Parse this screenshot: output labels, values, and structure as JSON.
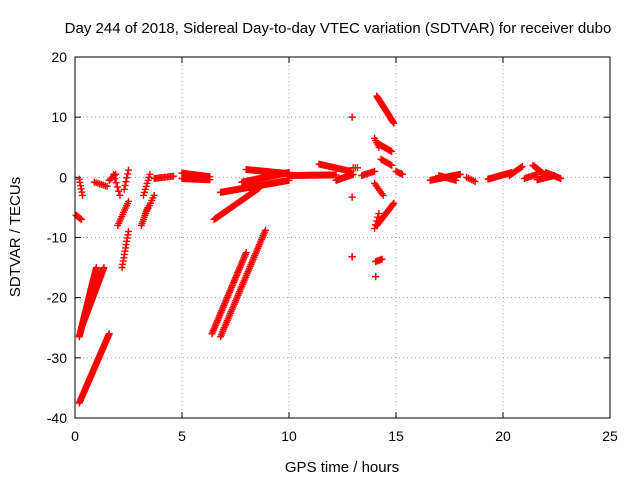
{
  "chart_data": {
    "type": "scatter",
    "title": "Day 244 of 2018, Sidereal Day-to-day VTEC variation (SDTVAR) for receiver dubo",
    "xlabel": "GPS time / hours",
    "ylabel": "SDTVAR / TECUs",
    "xlim": [
      0,
      25
    ],
    "ylim": [
      -40,
      20
    ],
    "xticks": [
      "0",
      "5",
      "10",
      "15",
      "20",
      "25"
    ],
    "yticks": [
      "20",
      "10",
      "0",
      "-10",
      "-20",
      "-30",
      "-40"
    ],
    "grid": true,
    "marker": "+",
    "color": "#ff0000",
    "segments": [
      {
        "x": [
          0.05,
          0.3
        ],
        "y": [
          -6.3,
          -7.0
        ],
        "n": 8
      },
      {
        "x": [
          0.2,
          0.35
        ],
        "y": [
          -0.3,
          -3.0
        ],
        "n": 6
      },
      {
        "x": [
          0.2,
          1.0
        ],
        "y": [
          -26.5,
          -15.0
        ],
        "n": 60
      },
      {
        "x": [
          0.3,
          1.35
        ],
        "y": [
          -25.0,
          -15.0
        ],
        "n": 60
      },
      {
        "x": [
          0.2,
          1.6
        ],
        "y": [
          -37.5,
          -26.0
        ],
        "n": 70
      },
      {
        "x": [
          0.9,
          1.5
        ],
        "y": [
          -0.8,
          -1.5
        ],
        "n": 8
      },
      {
        "x": [
          1.6,
          1.9
        ],
        "y": [
          -0.5,
          0.5
        ],
        "n": 6
      },
      {
        "x": [
          1.8,
          2.1
        ],
        "y": [
          0.5,
          -3.0
        ],
        "n": 6
      },
      {
        "x": [
          2.0,
          2.5
        ],
        "y": [
          -8.0,
          -4.0
        ],
        "n": 12
      },
      {
        "x": [
          2.2,
          2.5
        ],
        "y": [
          -15.0,
          -9.0
        ],
        "n": 12
      },
      {
        "x": [
          2.3,
          2.5
        ],
        "y": [
          -2.0,
          1.2
        ],
        "n": 6
      },
      {
        "x": [
          3.1,
          3.4
        ],
        "y": [
          -8.0,
          -5.0
        ],
        "n": 10
      },
      {
        "x": [
          3.2,
          3.5
        ],
        "y": [
          -3.0,
          0.5
        ],
        "n": 8
      },
      {
        "x": [
          3.3,
          3.7
        ],
        "y": [
          -6.0,
          -3.0
        ],
        "n": 8
      },
      {
        "x": [
          3.7,
          4.6
        ],
        "y": [
          -0.2,
          0.2
        ],
        "n": 14
      },
      {
        "x": [
          5.0,
          6.3
        ],
        "y": [
          0.7,
          0.1
        ],
        "n": 30
      },
      {
        "x": [
          5.0,
          6.3
        ],
        "y": [
          -0.2,
          -0.4
        ],
        "n": 30
      },
      {
        "x": [
          6.5,
          8.6
        ],
        "y": [
          -7.0,
          -1.8
        ],
        "n": 60
      },
      {
        "x": [
          6.8,
          10.0
        ],
        "y": [
          -2.5,
          -0.5
        ],
        "n": 70
      },
      {
        "x": [
          7.8,
          10.0
        ],
        "y": [
          -0.8,
          0.8
        ],
        "n": 50
      },
      {
        "x": [
          8.0,
          10.0
        ],
        "y": [
          1.3,
          0.6
        ],
        "n": 40
      },
      {
        "x": [
          6.4,
          8.0
        ],
        "y": [
          -26.0,
          -12.5
        ],
        "n": 50
      },
      {
        "x": [
          6.8,
          8.9
        ],
        "y": [
          -26.5,
          -8.8
        ],
        "n": 60
      },
      {
        "x": [
          10.0,
          12.2
        ],
        "y": [
          0.3,
          0.4
        ],
        "n": 40
      },
      {
        "x": [
          11.4,
          12.9
        ],
        "y": [
          2.2,
          1.0
        ],
        "n": 25
      },
      {
        "x": [
          12.2,
          13.0
        ],
        "y": [
          -0.5,
          0.5
        ],
        "n": 20
      },
      {
        "x": [
          13.0,
          13.2
        ],
        "y": [
          1.6,
          1.6
        ],
        "n": 3
      },
      {
        "x": [
          12.95,
          12.95
        ],
        "y": [
          10.0,
          10.0
        ],
        "n": 2
      },
      {
        "x": [
          12.95,
          12.95
        ],
        "y": [
          -3.3,
          -3.3
        ],
        "n": 2
      },
      {
        "x": [
          12.95,
          12.95
        ],
        "y": [
          -13.2,
          -13.2
        ],
        "n": 3
      },
      {
        "x": [
          13.4,
          14.0
        ],
        "y": [
          0.3,
          1.0
        ],
        "n": 10
      },
      {
        "x": [
          14.0,
          14.2
        ],
        "y": [
          6.5,
          5.0
        ],
        "n": 5
      },
      {
        "x": [
          14.0,
          14.2
        ],
        "y": [
          -8.5,
          -6.0
        ],
        "n": 5
      },
      {
        "x": [
          14.05,
          14.35
        ],
        "y": [
          -14.0,
          -13.6
        ],
        "n": 6
      },
      {
        "x": [
          14.05,
          14.05
        ],
        "y": [
          -16.5,
          -16.5
        ],
        "n": 2
      },
      {
        "x": [
          14.1,
          14.9
        ],
        "y": [
          13.5,
          9.0
        ],
        "n": 35
      },
      {
        "x": [
          14.2,
          14.8
        ],
        "y": [
          5.5,
          4.3
        ],
        "n": 15
      },
      {
        "x": [
          14.3,
          14.8
        ],
        "y": [
          3.0,
          2.0
        ],
        "n": 10
      },
      {
        "x": [
          14.0,
          14.4
        ],
        "y": [
          -1.0,
          -3.0
        ],
        "n": 8
      },
      {
        "x": [
          14.1,
          14.9
        ],
        "y": [
          -8.0,
          -4.3
        ],
        "n": 25
      },
      {
        "x": [
          15.0,
          15.3
        ],
        "y": [
          1.0,
          0.5
        ],
        "n": 6
      },
      {
        "x": [
          16.6,
          18.0
        ],
        "y": [
          -0.5,
          0.5
        ],
        "n": 30
      },
      {
        "x": [
          17.0,
          17.8
        ],
        "y": [
          0.3,
          -0.5
        ],
        "n": 15
      },
      {
        "x": [
          18.3,
          18.7
        ],
        "y": [
          0.0,
          -0.7
        ],
        "n": 6
      },
      {
        "x": [
          19.3,
          20.4
        ],
        "y": [
          -0.3,
          0.8
        ],
        "n": 25
      },
      {
        "x": [
          20.3,
          20.9
        ],
        "y": [
          0.3,
          1.8
        ],
        "n": 12
      },
      {
        "x": [
          21.0,
          21.6
        ],
        "y": [
          -0.2,
          0.5
        ],
        "n": 10
      },
      {
        "x": [
          21.4,
          22.0
        ],
        "y": [
          2.0,
          0.3
        ],
        "n": 15
      },
      {
        "x": [
          21.6,
          22.4
        ],
        "y": [
          -0.4,
          0.3
        ],
        "n": 20
      },
      {
        "x": [
          22.0,
          22.7
        ],
        "y": [
          0.8,
          -0.2
        ],
        "n": 15
      }
    ]
  }
}
